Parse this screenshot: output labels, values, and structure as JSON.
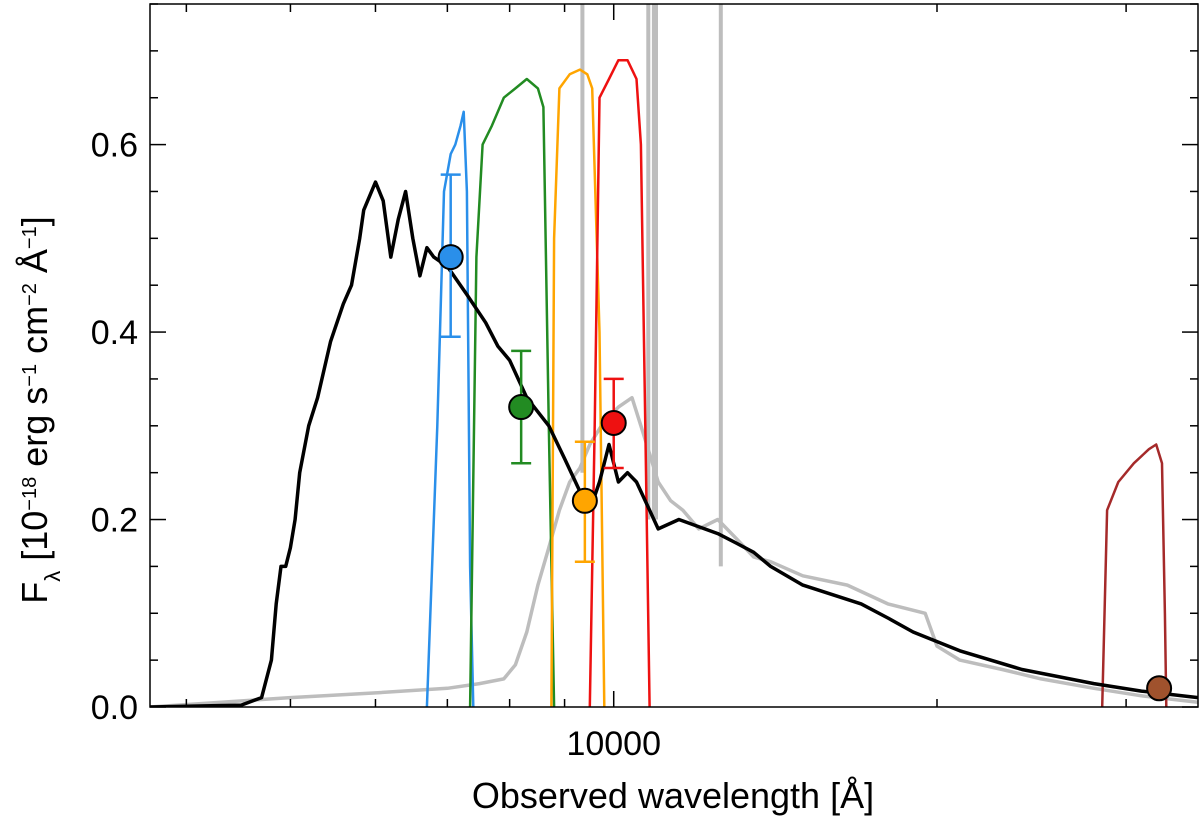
{
  "chart_data": {
    "type": "line",
    "x_scale": "log",
    "xlim": [
      3700,
      35000
    ],
    "ylim": [
      0.0,
      0.75
    ],
    "yticks": [
      0.0,
      0.2,
      0.4,
      0.6
    ],
    "ytick_labels": [
      "0.0",
      "0.2",
      "0.4",
      "0.6"
    ],
    "xticks": [
      10000
    ],
    "xtick_labels": [
      "10000"
    ],
    "xlabel": "Observed wavelength [Å]",
    "ylabel": {
      "base": "F",
      "sub": "λ",
      "open": " [10",
      "exp1": "−18",
      "unit1": " erg s",
      "exp2": "−1",
      "unit2": " cm",
      "exp3": "−2",
      "unit3": " Å",
      "exp4": "−1",
      "close": "]"
    },
    "series": [
      {
        "name": "model-spectrum",
        "color": "#000000",
        "points": [
          [
            3700,
            0.0
          ],
          [
            4500,
            0.002
          ],
          [
            4700,
            0.01
          ],
          [
            4800,
            0.05
          ],
          [
            4850,
            0.11
          ],
          [
            4900,
            0.15
          ],
          [
            4950,
            0.15
          ],
          [
            5000,
            0.17
          ],
          [
            5050,
            0.2
          ],
          [
            5100,
            0.25
          ],
          [
            5200,
            0.3
          ],
          [
            5300,
            0.33
          ],
          [
            5450,
            0.39
          ],
          [
            5600,
            0.43
          ],
          [
            5700,
            0.45
          ],
          [
            5800,
            0.5
          ],
          [
            5850,
            0.53
          ],
          [
            6000,
            0.56
          ],
          [
            6100,
            0.54
          ],
          [
            6200,
            0.48
          ],
          [
            6300,
            0.52
          ],
          [
            6400,
            0.55
          ],
          [
            6500,
            0.5
          ],
          [
            6600,
            0.46
          ],
          [
            6700,
            0.49
          ],
          [
            6800,
            0.48
          ],
          [
            7000,
            0.47
          ],
          [
            7300,
            0.44
          ],
          [
            7600,
            0.41
          ],
          [
            7800,
            0.385
          ],
          [
            8000,
            0.37
          ],
          [
            8300,
            0.33
          ],
          [
            8700,
            0.3
          ],
          [
            9000,
            0.265
          ],
          [
            9300,
            0.23
          ],
          [
            9500,
            0.21
          ],
          [
            9700,
            0.24
          ],
          [
            9900,
            0.28
          ],
          [
            10100,
            0.24
          ],
          [
            10300,
            0.25
          ],
          [
            10500,
            0.24
          ],
          [
            10800,
            0.21
          ],
          [
            11000,
            0.19
          ],
          [
            11500,
            0.2
          ],
          [
            12500,
            0.185
          ],
          [
            13000,
            0.175
          ],
          [
            13500,
            0.165
          ],
          [
            14000,
            0.15
          ],
          [
            15000,
            0.13
          ],
          [
            17000,
            0.11
          ],
          [
            18000,
            0.095
          ],
          [
            19000,
            0.08
          ],
          [
            21000,
            0.06
          ],
          [
            24000,
            0.04
          ],
          [
            28000,
            0.025
          ],
          [
            31000,
            0.017
          ],
          [
            35000,
            0.01
          ]
        ]
      },
      {
        "name": "comparison-spectrum",
        "color": "#bdbdbd",
        "points": [
          [
            3700,
            0.0
          ],
          [
            5000,
            0.01
          ],
          [
            6000,
            0.015
          ],
          [
            7000,
            0.02
          ],
          [
            7500,
            0.025
          ],
          [
            7900,
            0.03
          ],
          [
            8100,
            0.045
          ],
          [
            8300,
            0.08
          ],
          [
            8500,
            0.13
          ],
          [
            8700,
            0.17
          ],
          [
            8900,
            0.21
          ],
          [
            9100,
            0.24
          ],
          [
            9300,
            0.255
          ],
          [
            9500,
            0.28
          ],
          [
            9800,
            0.305
          ],
          [
            10100,
            0.32
          ],
          [
            10400,
            0.33
          ],
          [
            10600,
            0.3
          ],
          [
            10800,
            0.27
          ],
          [
            11000,
            0.24
          ],
          [
            11300,
            0.22
          ],
          [
            11600,
            0.21
          ],
          [
            12000,
            0.19
          ],
          [
            12500,
            0.2
          ],
          [
            13000,
            0.18
          ],
          [
            13500,
            0.16
          ],
          [
            14000,
            0.155
          ],
          [
            15000,
            0.14
          ],
          [
            16500,
            0.13
          ],
          [
            18000,
            0.11
          ],
          [
            19500,
            0.1
          ],
          [
            20000,
            0.065
          ],
          [
            21000,
            0.05
          ],
          [
            23000,
            0.04
          ],
          [
            25000,
            0.03
          ],
          [
            28000,
            0.02
          ],
          [
            31000,
            0.012
          ],
          [
            35000,
            0.005
          ]
        ]
      },
      {
        "name": "telluric-spikes",
        "color": "#bdbdbd",
        "segments": [
          [
            [
              9350,
              0.25
            ],
            [
              9350,
              0.75
            ]
          ],
          [
            [
              10770,
              0.2
            ],
            [
              10770,
              0.75
            ]
          ],
          [
            [
              10900,
              0.2
            ],
            [
              10900,
              0.75
            ]
          ],
          [
            [
              10950,
              0.2
            ],
            [
              10950,
              0.75
            ]
          ],
          [
            [
              12580,
              0.15
            ],
            [
              12580,
              0.75
            ]
          ]
        ]
      }
    ],
    "filters": [
      {
        "name": "filter-blue",
        "color": "#2a8fea",
        "points": [
          [
            6700,
            0.0
          ],
          [
            6850,
            0.3
          ],
          [
            6950,
            0.55
          ],
          [
            7050,
            0.59
          ],
          [
            7120,
            0.6
          ],
          [
            7200,
            0.62
          ],
          [
            7250,
            0.635
          ],
          [
            7300,
            0.55
          ],
          [
            7350,
            0.15
          ],
          [
            7400,
            0.0
          ]
        ]
      },
      {
        "name": "filter-green",
        "color": "#228b22",
        "points": [
          [
            7350,
            0.0
          ],
          [
            7450,
            0.48
          ],
          [
            7550,
            0.6
          ],
          [
            7700,
            0.62
          ],
          [
            7900,
            0.65
          ],
          [
            8100,
            0.66
          ],
          [
            8300,
            0.67
          ],
          [
            8500,
            0.66
          ],
          [
            8600,
            0.64
          ],
          [
            8700,
            0.3
          ],
          [
            8800,
            0.0
          ]
        ]
      },
      {
        "name": "filter-orange",
        "color": "#ffa500",
        "points": [
          [
            8750,
            0.0
          ],
          [
            8800,
            0.5
          ],
          [
            8900,
            0.66
          ],
          [
            9100,
            0.675
          ],
          [
            9300,
            0.68
          ],
          [
            9450,
            0.675
          ],
          [
            9550,
            0.66
          ],
          [
            9700,
            0.4
          ],
          [
            9800,
            0.0
          ]
        ]
      },
      {
        "name": "filter-red",
        "color": "#ee1111",
        "points": [
          [
            9500,
            0.0
          ],
          [
            9600,
            0.3
          ],
          [
            9700,
            0.65
          ],
          [
            9900,
            0.67
          ],
          [
            10100,
            0.69
          ],
          [
            10300,
            0.69
          ],
          [
            10500,
            0.67
          ],
          [
            10600,
            0.6
          ],
          [
            10700,
            0.3
          ],
          [
            10800,
            0.0
          ]
        ]
      },
      {
        "name": "filter-brown",
        "color": "#a52a2a",
        "points": [
          [
            28500,
            0.0
          ],
          [
            28800,
            0.21
          ],
          [
            29500,
            0.24
          ],
          [
            30500,
            0.26
          ],
          [
            31500,
            0.275
          ],
          [
            32000,
            0.28
          ],
          [
            32400,
            0.26
          ],
          [
            32600,
            0.1
          ],
          [
            32700,
            0.0
          ]
        ]
      }
    ],
    "photometry": [
      {
        "name": "photometry-blue",
        "color": "#2a8fea",
        "x": 7050,
        "y": 0.48,
        "yerr_low": 0.395,
        "yerr_high": 0.568
      },
      {
        "name": "photometry-green",
        "color": "#228b22",
        "x": 8200,
        "y": 0.32,
        "yerr_low": 0.26,
        "yerr_high": 0.38
      },
      {
        "name": "photometry-orange",
        "color": "#ffa500",
        "x": 9400,
        "y": 0.22,
        "yerr_low": 0.155,
        "yerr_high": 0.283
      },
      {
        "name": "photometry-red",
        "color": "#ee1111",
        "x": 10000,
        "y": 0.303,
        "yerr_low": 0.255,
        "yerr_high": 0.35
      },
      {
        "name": "photometry-brown",
        "color": "#a0522d",
        "x": 32200,
        "y": 0.02,
        "yerr_low": 0.02,
        "yerr_high": 0.02
      }
    ]
  }
}
